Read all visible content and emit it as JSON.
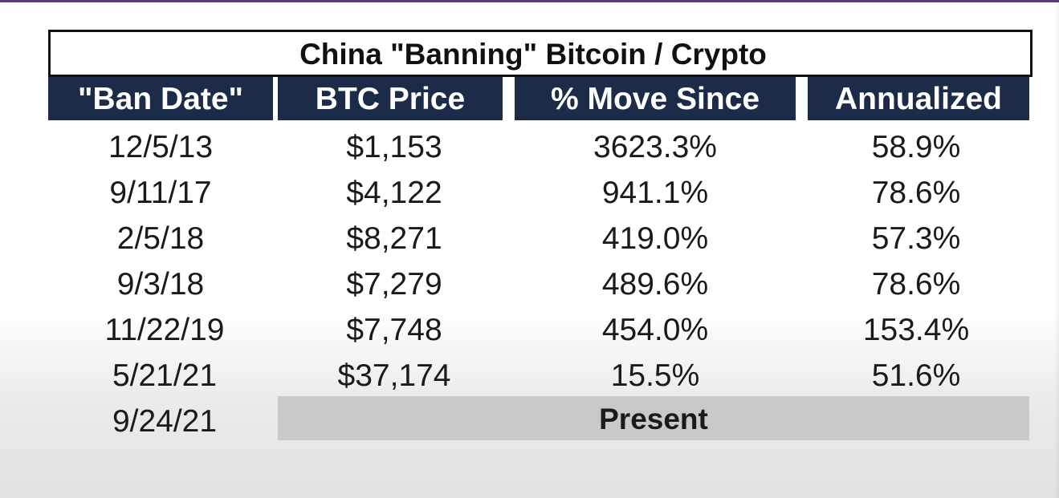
{
  "table": {
    "title": "China \"Banning\" Bitcoin / Crypto",
    "columns": [
      "\"Ban Date\"",
      "BTC Price",
      "% Move Since",
      "Annualized"
    ],
    "rows": [
      [
        "12/5/13",
        "$1,153",
        "3623.3%",
        "58.9%"
      ],
      [
        "9/11/17",
        "$4,122",
        "941.1%",
        "78.6%"
      ],
      [
        "2/5/18",
        "$8,271",
        "419.0%",
        "57.3%"
      ],
      [
        "9/3/18",
        "$7,279",
        "489.6%",
        "78.6%"
      ],
      [
        "11/22/19",
        "$7,748",
        "454.0%",
        "153.4%"
      ],
      [
        "5/21/21",
        "$37,174",
        "15.5%",
        "51.6%"
      ]
    ],
    "final_row": {
      "date": "9/24/21",
      "label": "Present"
    }
  },
  "chart_data": {
    "type": "table",
    "title": "China \"Banning\" Bitcoin / Crypto",
    "columns": [
      "\"Ban Date\"",
      "BTC Price",
      "% Move Since",
      "Annualized"
    ],
    "rows": [
      [
        "12/5/13",
        "$1,153",
        "3623.3%",
        "58.9%"
      ],
      [
        "9/11/17",
        "$4,122",
        "941.1%",
        "78.6%"
      ],
      [
        "2/5/18",
        "$8,271",
        "419.0%",
        "57.3%"
      ],
      [
        "9/3/18",
        "$7,279",
        "489.6%",
        "78.6%"
      ],
      [
        "11/22/19",
        "$7,748",
        "454.0%",
        "153.4%"
      ],
      [
        "5/21/21",
        "$37,174",
        "15.5%",
        "51.6%"
      ],
      [
        "9/24/21",
        "Present",
        "",
        ""
      ]
    ]
  },
  "colors": {
    "header_background": "#1c2b48",
    "header_text": "#ffffff",
    "present_bar": "#c9c9c9",
    "top_border": "#5a3d78"
  }
}
